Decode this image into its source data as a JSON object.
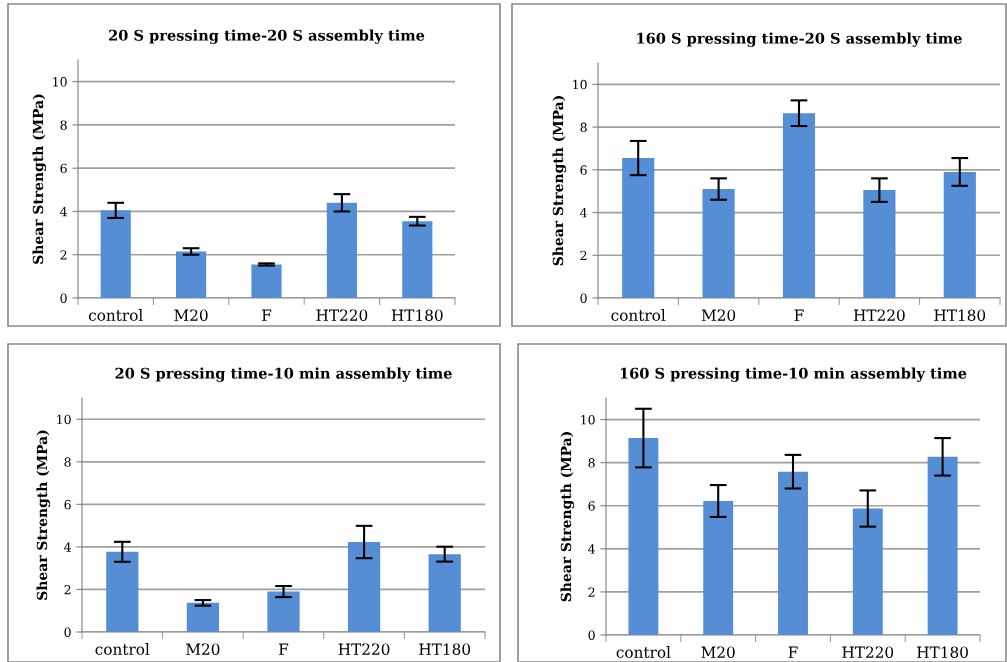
{
  "chart_data": [
    {
      "type": "bar",
      "title": "20 S pressing time-20 S assembly time",
      "ylabel": "Shear Strength (MPa)",
      "categories": [
        "control",
        "M20",
        "F",
        "HT220",
        "HT180"
      ],
      "values": [
        4.05,
        2.15,
        1.55,
        4.4,
        3.55
      ],
      "errors": [
        0.35,
        0.15,
        0.05,
        0.4,
        0.2
      ],
      "color": "#558ed5",
      "ylim": [
        0,
        11
      ],
      "yticks": [
        0,
        2,
        4,
        6,
        8,
        10
      ],
      "grid": "y"
    },
    {
      "type": "bar",
      "title": "160 S pressing time-20 S assembly time",
      "ylabel": "Shear Strength (MPa)",
      "categories": [
        "control",
        "M20",
        "F",
        "HT220",
        "HT180"
      ],
      "values": [
        6.55,
        5.1,
        8.65,
        5.05,
        5.9
      ],
      "errors": [
        0.8,
        0.5,
        0.6,
        0.55,
        0.65
      ],
      "color": "#558ed5",
      "ylim": [
        0,
        11
      ],
      "yticks": [
        0,
        2,
        4,
        6,
        8,
        10
      ],
      "grid": "y"
    },
    {
      "type": "bar",
      "title": "20 S pressing time-10 min assembly time",
      "ylabel": "Shear Strength (MPa)",
      "categories": [
        "control",
        "M20",
        "F",
        "HT220",
        "HT180"
      ],
      "values": [
        3.77,
        1.37,
        1.9,
        4.23,
        3.66
      ],
      "errors": [
        0.47,
        0.13,
        0.26,
        0.76,
        0.35
      ],
      "color": "#558ed5",
      "ylim": [
        0,
        11
      ],
      "yticks": [
        0,
        2,
        4,
        6,
        8,
        10
      ],
      "grid": "y"
    },
    {
      "type": "bar",
      "title": "160 S pressing time-10 min assembly time",
      "ylabel": "Shear Strength (MPa)",
      "categories": [
        "control",
        "M20",
        "F",
        "HT220",
        "HT180"
      ],
      "values": [
        9.14,
        6.22,
        7.58,
        5.87,
        8.27
      ],
      "errors": [
        1.36,
        0.74,
        0.78,
        0.84,
        0.87
      ],
      "color": "#558ed5",
      "ylim": [
        0,
        11
      ],
      "yticks": [
        0,
        2,
        4,
        6,
        8,
        10
      ],
      "grid": "y"
    }
  ]
}
